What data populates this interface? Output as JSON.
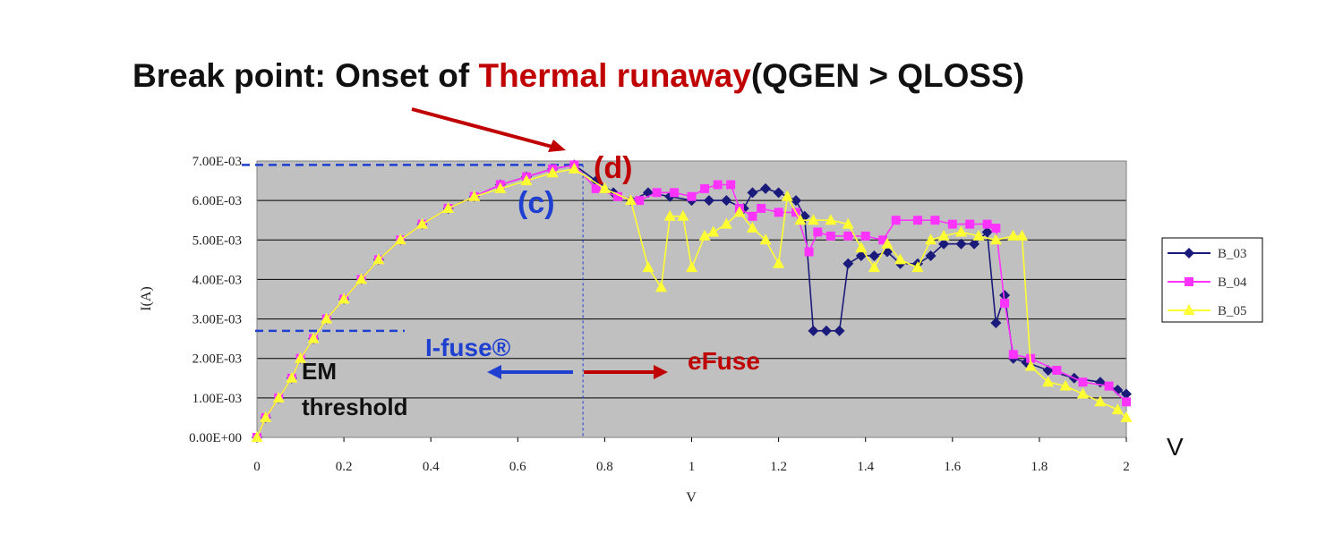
{
  "title": {
    "part1": "Break point:  Onset of ",
    "part2": "Thermal runaway",
    "part3": "(QGEN > QLOSS)"
  },
  "colors": {
    "title_black": "#111111",
    "title_red": "#c00000",
    "plot_bg": "#c0c0c0",
    "blue_annotation": "#1f3fd0",
    "red_annotation": "#c00000",
    "B_03": "#1a1a7a",
    "B_04": "#ff33ff",
    "B_05": "#ffff33"
  },
  "annotations": {
    "c_label": "(c)",
    "d_label": "(d)",
    "ifuse_label": "I-fuse®",
    "efuse_label": "eFuse",
    "em_line1": "EM",
    "em_line2": "threshold",
    "v_label": "V"
  },
  "chart_data": {
    "type": "line",
    "xlabel": "V",
    "ylabel": "I(A)",
    "xlim": [
      0,
      2
    ],
    "ylim": [
      0,
      0.007
    ],
    "x_ticks": [
      "0",
      "0.2",
      "0.4",
      "0.6",
      "0.8",
      "1",
      "1.2",
      "1.4",
      "1.6",
      "1.8",
      "2"
    ],
    "y_ticks": [
      "0.00E+00",
      "1.00E-03",
      "2.00E-03",
      "3.00E-03",
      "4.00E-03",
      "5.00E-03",
      "6.00E-03",
      "7.00E-03"
    ],
    "grid": "horizontal",
    "legend": "right",
    "reference_lines": {
      "break_point_current": 0.0069,
      "break_point_voltage": 0.75,
      "em_threshold_current": 0.0027
    },
    "series": [
      {
        "name": "B_03",
        "marker": "diamond",
        "points": [
          [
            0,
            0
          ],
          [
            0.02,
            0.0005
          ],
          [
            0.05,
            0.001
          ],
          [
            0.08,
            0.0015
          ],
          [
            0.1,
            0.002
          ],
          [
            0.13,
            0.0025
          ],
          [
            0.16,
            0.003
          ],
          [
            0.2,
            0.0035
          ],
          [
            0.24,
            0.004
          ],
          [
            0.28,
            0.0045
          ],
          [
            0.33,
            0.005
          ],
          [
            0.38,
            0.0054
          ],
          [
            0.44,
            0.0058
          ],
          [
            0.5,
            0.0061
          ],
          [
            0.56,
            0.0064
          ],
          [
            0.62,
            0.0066
          ],
          [
            0.68,
            0.0068
          ],
          [
            0.73,
            0.0069
          ],
          [
            0.78,
            0.0065
          ],
          [
            0.82,
            0.0062
          ],
          [
            0.86,
            0.006
          ],
          [
            0.9,
            0.0062
          ],
          [
            0.95,
            0.0061
          ],
          [
            1.0,
            0.006
          ],
          [
            1.04,
            0.006
          ],
          [
            1.08,
            0.006
          ],
          [
            1.12,
            0.0058
          ],
          [
            1.14,
            0.0062
          ],
          [
            1.17,
            0.0063
          ],
          [
            1.2,
            0.0062
          ],
          [
            1.24,
            0.006
          ],
          [
            1.26,
            0.0056
          ],
          [
            1.28,
            0.0027
          ],
          [
            1.31,
            0.0027
          ],
          [
            1.34,
            0.0027
          ],
          [
            1.36,
            0.0044
          ],
          [
            1.39,
            0.0046
          ],
          [
            1.42,
            0.0046
          ],
          [
            1.45,
            0.0047
          ],
          [
            1.48,
            0.0044
          ],
          [
            1.52,
            0.0044
          ],
          [
            1.55,
            0.0046
          ],
          [
            1.58,
            0.0049
          ],
          [
            1.62,
            0.0049
          ],
          [
            1.65,
            0.0049
          ],
          [
            1.68,
            0.0052
          ],
          [
            1.7,
            0.0029
          ],
          [
            1.72,
            0.0036
          ],
          [
            1.74,
            0.002
          ],
          [
            1.77,
            0.0019
          ],
          [
            1.82,
            0.0017
          ],
          [
            1.88,
            0.0015
          ],
          [
            1.94,
            0.0014
          ],
          [
            1.98,
            0.0012
          ],
          [
            2.0,
            0.0011
          ]
        ]
      },
      {
        "name": "B_04",
        "marker": "square",
        "points": [
          [
            0,
            0
          ],
          [
            0.02,
            0.0005
          ],
          [
            0.05,
            0.001
          ],
          [
            0.08,
            0.0015
          ],
          [
            0.1,
            0.002
          ],
          [
            0.13,
            0.0025
          ],
          [
            0.16,
            0.003
          ],
          [
            0.2,
            0.0035
          ],
          [
            0.24,
            0.004
          ],
          [
            0.28,
            0.0045
          ],
          [
            0.33,
            0.005
          ],
          [
            0.38,
            0.0054
          ],
          [
            0.44,
            0.0058
          ],
          [
            0.5,
            0.0061
          ],
          [
            0.56,
            0.0064
          ],
          [
            0.62,
            0.0066
          ],
          [
            0.68,
            0.0068
          ],
          [
            0.73,
            0.0069
          ],
          [
            0.78,
            0.0063
          ],
          [
            0.83,
            0.0061
          ],
          [
            0.88,
            0.006
          ],
          [
            0.92,
            0.0062
          ],
          [
            0.96,
            0.0062
          ],
          [
            1.0,
            0.0061
          ],
          [
            1.03,
            0.0063
          ],
          [
            1.06,
            0.0064
          ],
          [
            1.09,
            0.0064
          ],
          [
            1.11,
            0.0058
          ],
          [
            1.14,
            0.0056
          ],
          [
            1.16,
            0.0058
          ],
          [
            1.2,
            0.0057
          ],
          [
            1.24,
            0.0057
          ],
          [
            1.27,
            0.0047
          ],
          [
            1.29,
            0.0052
          ],
          [
            1.32,
            0.0051
          ],
          [
            1.36,
            0.0051
          ],
          [
            1.4,
            0.0051
          ],
          [
            1.44,
            0.005
          ],
          [
            1.47,
            0.0055
          ],
          [
            1.52,
            0.0055
          ],
          [
            1.56,
            0.0055
          ],
          [
            1.6,
            0.0054
          ],
          [
            1.64,
            0.0054
          ],
          [
            1.68,
            0.0054
          ],
          [
            1.7,
            0.0053
          ],
          [
            1.72,
            0.0034
          ],
          [
            1.74,
            0.0021
          ],
          [
            1.78,
            0.002
          ],
          [
            1.84,
            0.0017
          ],
          [
            1.9,
            0.0014
          ],
          [
            1.96,
            0.0013
          ],
          [
            2.0,
            0.0009
          ]
        ]
      },
      {
        "name": "B_05",
        "marker": "triangle",
        "points": [
          [
            0,
            0
          ],
          [
            0.02,
            0.0005
          ],
          [
            0.05,
            0.001
          ],
          [
            0.08,
            0.0015
          ],
          [
            0.1,
            0.002
          ],
          [
            0.13,
            0.0025
          ],
          [
            0.16,
            0.003
          ],
          [
            0.2,
            0.0035
          ],
          [
            0.24,
            0.004
          ],
          [
            0.28,
            0.0045
          ],
          [
            0.33,
            0.005
          ],
          [
            0.38,
            0.0054
          ],
          [
            0.44,
            0.0058
          ],
          [
            0.5,
            0.0061
          ],
          [
            0.56,
            0.0063
          ],
          [
            0.62,
            0.0065
          ],
          [
            0.68,
            0.0067
          ],
          [
            0.73,
            0.0068
          ],
          [
            0.8,
            0.0063
          ],
          [
            0.86,
            0.006
          ],
          [
            0.9,
            0.0043
          ],
          [
            0.93,
            0.0038
          ],
          [
            0.95,
            0.0056
          ],
          [
            0.98,
            0.0056
          ],
          [
            1.0,
            0.0043
          ],
          [
            1.03,
            0.0051
          ],
          [
            1.05,
            0.0052
          ],
          [
            1.08,
            0.0054
          ],
          [
            1.11,
            0.0057
          ],
          [
            1.14,
            0.0053
          ],
          [
            1.17,
            0.005
          ],
          [
            1.2,
            0.0044
          ],
          [
            1.22,
            0.0061
          ],
          [
            1.25,
            0.0055
          ],
          [
            1.28,
            0.0055
          ],
          [
            1.32,
            0.0055
          ],
          [
            1.36,
            0.0054
          ],
          [
            1.39,
            0.0048
          ],
          [
            1.42,
            0.0043
          ],
          [
            1.45,
            0.0049
          ],
          [
            1.48,
            0.0045
          ],
          [
            1.52,
            0.0043
          ],
          [
            1.55,
            0.005
          ],
          [
            1.58,
            0.0051
          ],
          [
            1.62,
            0.0052
          ],
          [
            1.66,
            0.0051
          ],
          [
            1.7,
            0.005
          ],
          [
            1.74,
            0.0051
          ],
          [
            1.76,
            0.0051
          ],
          [
            1.78,
            0.0018
          ],
          [
            1.82,
            0.0014
          ],
          [
            1.86,
            0.0013
          ],
          [
            1.9,
            0.0011
          ],
          [
            1.94,
            0.0009
          ],
          [
            1.98,
            0.0007
          ],
          [
            2.0,
            0.0005
          ]
        ]
      }
    ]
  }
}
